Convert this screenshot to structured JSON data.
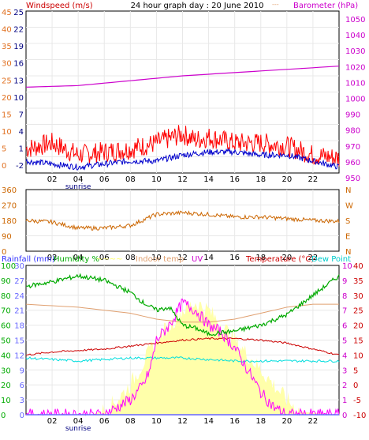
{
  "chart_data": [
    {
      "type": "line",
      "title": "24 hour graph day : 20 June 2010",
      "legend": {
        "left": "Windspeed (m/s)",
        "right": "Barometer (hPa)"
      },
      "left_axis": {
        "orange_ticks": [
          "45",
          "40",
          "35",
          "30",
          "25",
          "20",
          "15",
          "10",
          "5",
          "0"
        ],
        "blue_ticks": [
          "25",
          "22",
          "19",
          "16",
          "13",
          "10",
          "7",
          "4",
          "1",
          "-2"
        ],
        "ylim": [
          -2,
          25
        ]
      },
      "right_axis": {
        "ticks": [
          "1050",
          "1040",
          "1030",
          "1020",
          "1010",
          "1000",
          "990",
          "980",
          "970",
          "960",
          "950"
        ],
        "ylim": [
          950,
          1050
        ]
      },
      "x": {
        "ticks": [
          "02",
          "04",
          "06",
          "08",
          "10",
          "12",
          "14",
          "16",
          "18",
          "20",
          "22"
        ],
        "sunrise_label": "sunrise"
      },
      "series": [
        {
          "name": "Barometer (hPa)",
          "color": "#cc00cc",
          "points": [
            [
              0,
              1003
            ],
            [
              4,
              1004
            ],
            [
              8,
              1007
            ],
            [
              12,
              1010
            ],
            [
              16,
              1012
            ],
            [
              20,
              1014
            ],
            [
              24,
              1016
            ]
          ]
        },
        {
          "name": "",
          "color": "#ff0000",
          "points": [
            [
              0,
              2
            ],
            [
              2,
              3
            ],
            [
              4,
              1
            ],
            [
              6,
              1.5
            ],
            [
              8,
              2
            ],
            [
              10,
              3
            ],
            [
              12,
              4.5
            ],
            [
              13,
              3.5
            ],
            [
              14,
              4
            ],
            [
              16,
              3
            ],
            [
              18,
              3
            ],
            [
              20,
              2.5
            ],
            [
              22,
              1
            ],
            [
              24,
              0.5
            ]
          ]
        },
        {
          "name": "",
          "color": "#0000cc",
          "points": [
            [
              0,
              0
            ],
            [
              4,
              -1
            ],
            [
              8,
              0
            ],
            [
              10,
              0
            ],
            [
              12,
              1
            ],
            [
              14,
              1.5
            ],
            [
              16,
              1.5
            ],
            [
              18,
              1
            ],
            [
              20,
              1
            ],
            [
              22,
              0
            ],
            [
              24,
              -1
            ]
          ]
        }
      ]
    },
    {
      "type": "line",
      "left_axis": {
        "ticks": [
          "360",
          "270",
          "180",
          "90",
          "0"
        ],
        "ylim": [
          0,
          360
        ]
      },
      "right_axis": {
        "ticks": [
          "N",
          "W",
          "S",
          "E",
          "N"
        ]
      },
      "x": {
        "ticks": [
          "02",
          "04",
          "06",
          "08",
          "10",
          "12",
          "14",
          "16",
          "18",
          "20",
          "22"
        ]
      },
      "series": [
        {
          "name": "",
          "color": "#cc6600",
          "points": [
            [
              0,
              180
            ],
            [
              2,
              170
            ],
            [
              4,
              135
            ],
            [
              6,
              135
            ],
            [
              8,
              150
            ],
            [
              10,
              215
            ],
            [
              12,
              225
            ],
            [
              14,
              215
            ],
            [
              16,
              200
            ],
            [
              18,
              200
            ],
            [
              20,
              190
            ],
            [
              22,
              180
            ],
            [
              24,
              175
            ]
          ]
        }
      ]
    },
    {
      "type": "line",
      "legend": [
        "Rainfall (mm)",
        "Humidity %",
        "Indoor temp",
        "UV",
        "Temperature (°C)",
        "Dew Point"
      ],
      "left_axes": {
        "humidity_ticks": [
          "100",
          "90",
          "80",
          "70",
          "60",
          "50",
          "40",
          "30",
          "20",
          "10",
          "0"
        ],
        "rain_ticks": [
          "30",
          "27",
          "24",
          "21",
          "18",
          "15",
          "12",
          "9",
          "6",
          "3",
          "0"
        ]
      },
      "right_axes": {
        "uv_ticks": [
          "10",
          "9",
          "8",
          "7",
          "6",
          "5",
          "4",
          "3",
          "2",
          "1",
          "0"
        ],
        "temp_ticks": [
          "40",
          "35",
          "30",
          "25",
          "20",
          "15",
          "10",
          "5",
          "0",
          "-5",
          "-10"
        ]
      },
      "x": {
        "ticks": [
          "02",
          "04",
          "06",
          "08",
          "10",
          "12",
          "14",
          "16",
          "18",
          "20",
          "22"
        ],
        "sunrise_label": "sunrise"
      },
      "series": [
        {
          "name": "Humidity %",
          "color": "#00aa00",
          "points": [
            [
              0,
              86
            ],
            [
              2,
              89
            ],
            [
              4,
              93
            ],
            [
              6,
              90
            ],
            [
              8,
              82
            ],
            [
              9,
              75
            ],
            [
              10,
              70
            ],
            [
              11,
              72
            ],
            [
              12,
              60
            ],
            [
              13,
              58
            ],
            [
              14,
              54
            ],
            [
              16,
              56
            ],
            [
              18,
              60
            ],
            [
              20,
              67
            ],
            [
              22,
              80
            ],
            [
              24,
              93
            ]
          ]
        },
        {
          "name": "Indoor temp",
          "color": "#e0a070",
          "points": [
            [
              0,
              27
            ],
            [
              4,
              26
            ],
            [
              8,
              24
            ],
            [
              10,
              22
            ],
            [
              12,
              21
            ],
            [
              14,
              21
            ],
            [
              16,
              22
            ],
            [
              18,
              24
            ],
            [
              20,
              26
            ],
            [
              22,
              27
            ],
            [
              24,
              27
            ]
          ]
        },
        {
          "name": "Temperature (°C)",
          "color": "#cc0000",
          "points": [
            [
              0,
              10
            ],
            [
              2,
              11
            ],
            [
              4,
              11.5
            ],
            [
              6,
              12
            ],
            [
              8,
              13
            ],
            [
              10,
              14
            ],
            [
              12,
              15
            ],
            [
              14,
              15.5
            ],
            [
              16,
              15.5
            ],
            [
              18,
              15
            ],
            [
              20,
              14
            ],
            [
              22,
              12
            ],
            [
              24,
              10
            ]
          ]
        },
        {
          "name": "Dew Point",
          "color": "#00dddd",
          "points": [
            [
              0,
              9
            ],
            [
              4,
              8
            ],
            [
              8,
              9
            ],
            [
              12,
              9
            ],
            [
              16,
              8
            ],
            [
              20,
              8
            ],
            [
              24,
              8
            ]
          ]
        },
        {
          "name": "UV",
          "color": "#ff00ff",
          "points": [
            [
              0,
              0
            ],
            [
              6,
              0
            ],
            [
              7,
              0.5
            ],
            [
              8,
              1
            ],
            [
              9,
              2
            ],
            [
              9.5,
              3
            ],
            [
              10,
              5
            ],
            [
              11,
              6
            ],
            [
              12,
              7.5
            ],
            [
              13,
              7
            ],
            [
              14,
              6
            ],
            [
              15,
              5.5
            ],
            [
              16,
              4.5
            ],
            [
              17,
              3
            ],
            [
              18,
              1.5
            ],
            [
              19,
              0.5
            ],
            [
              20,
              0
            ],
            [
              24,
              0
            ]
          ]
        },
        {
          "name": "",
          "color": "#ffffaa",
          "points": [
            [
              0,
              0
            ],
            [
              5,
              0
            ],
            [
              6,
              0.3
            ],
            [
              7,
              1
            ],
            [
              8,
              2
            ],
            [
              9,
              3.5
            ],
            [
              10,
              5
            ],
            [
              11,
              6
            ],
            [
              12,
              7
            ],
            [
              13,
              7.5
            ],
            [
              14,
              7
            ],
            [
              15,
              6
            ],
            [
              16,
              5
            ],
            [
              17,
              4
            ],
            [
              18,
              3
            ],
            [
              19,
              2
            ],
            [
              20,
              1
            ],
            [
              21,
              0.2
            ],
            [
              24,
              0
            ]
          ]
        },
        {
          "name": "Rainfall (mm)",
          "color": "#6666ff",
          "points": [
            [
              0,
              0
            ],
            [
              24,
              0
            ]
          ]
        }
      ]
    }
  ],
  "colors": {
    "humidity": "#00aa00",
    "indoor": "#e0a070",
    "temperature": "#cc0000",
    "dew": "#00dddd",
    "uv": "#ff00ff",
    "solar": "#ffffaa",
    "rain": "#6666ff",
    "wind_gust": "#ff0000",
    "wind_avg": "#0000cc",
    "barometer": "#cc00cc",
    "wind_dir": "#cc6600",
    "grid": "#e8e8e8",
    "frame": "#000000"
  }
}
